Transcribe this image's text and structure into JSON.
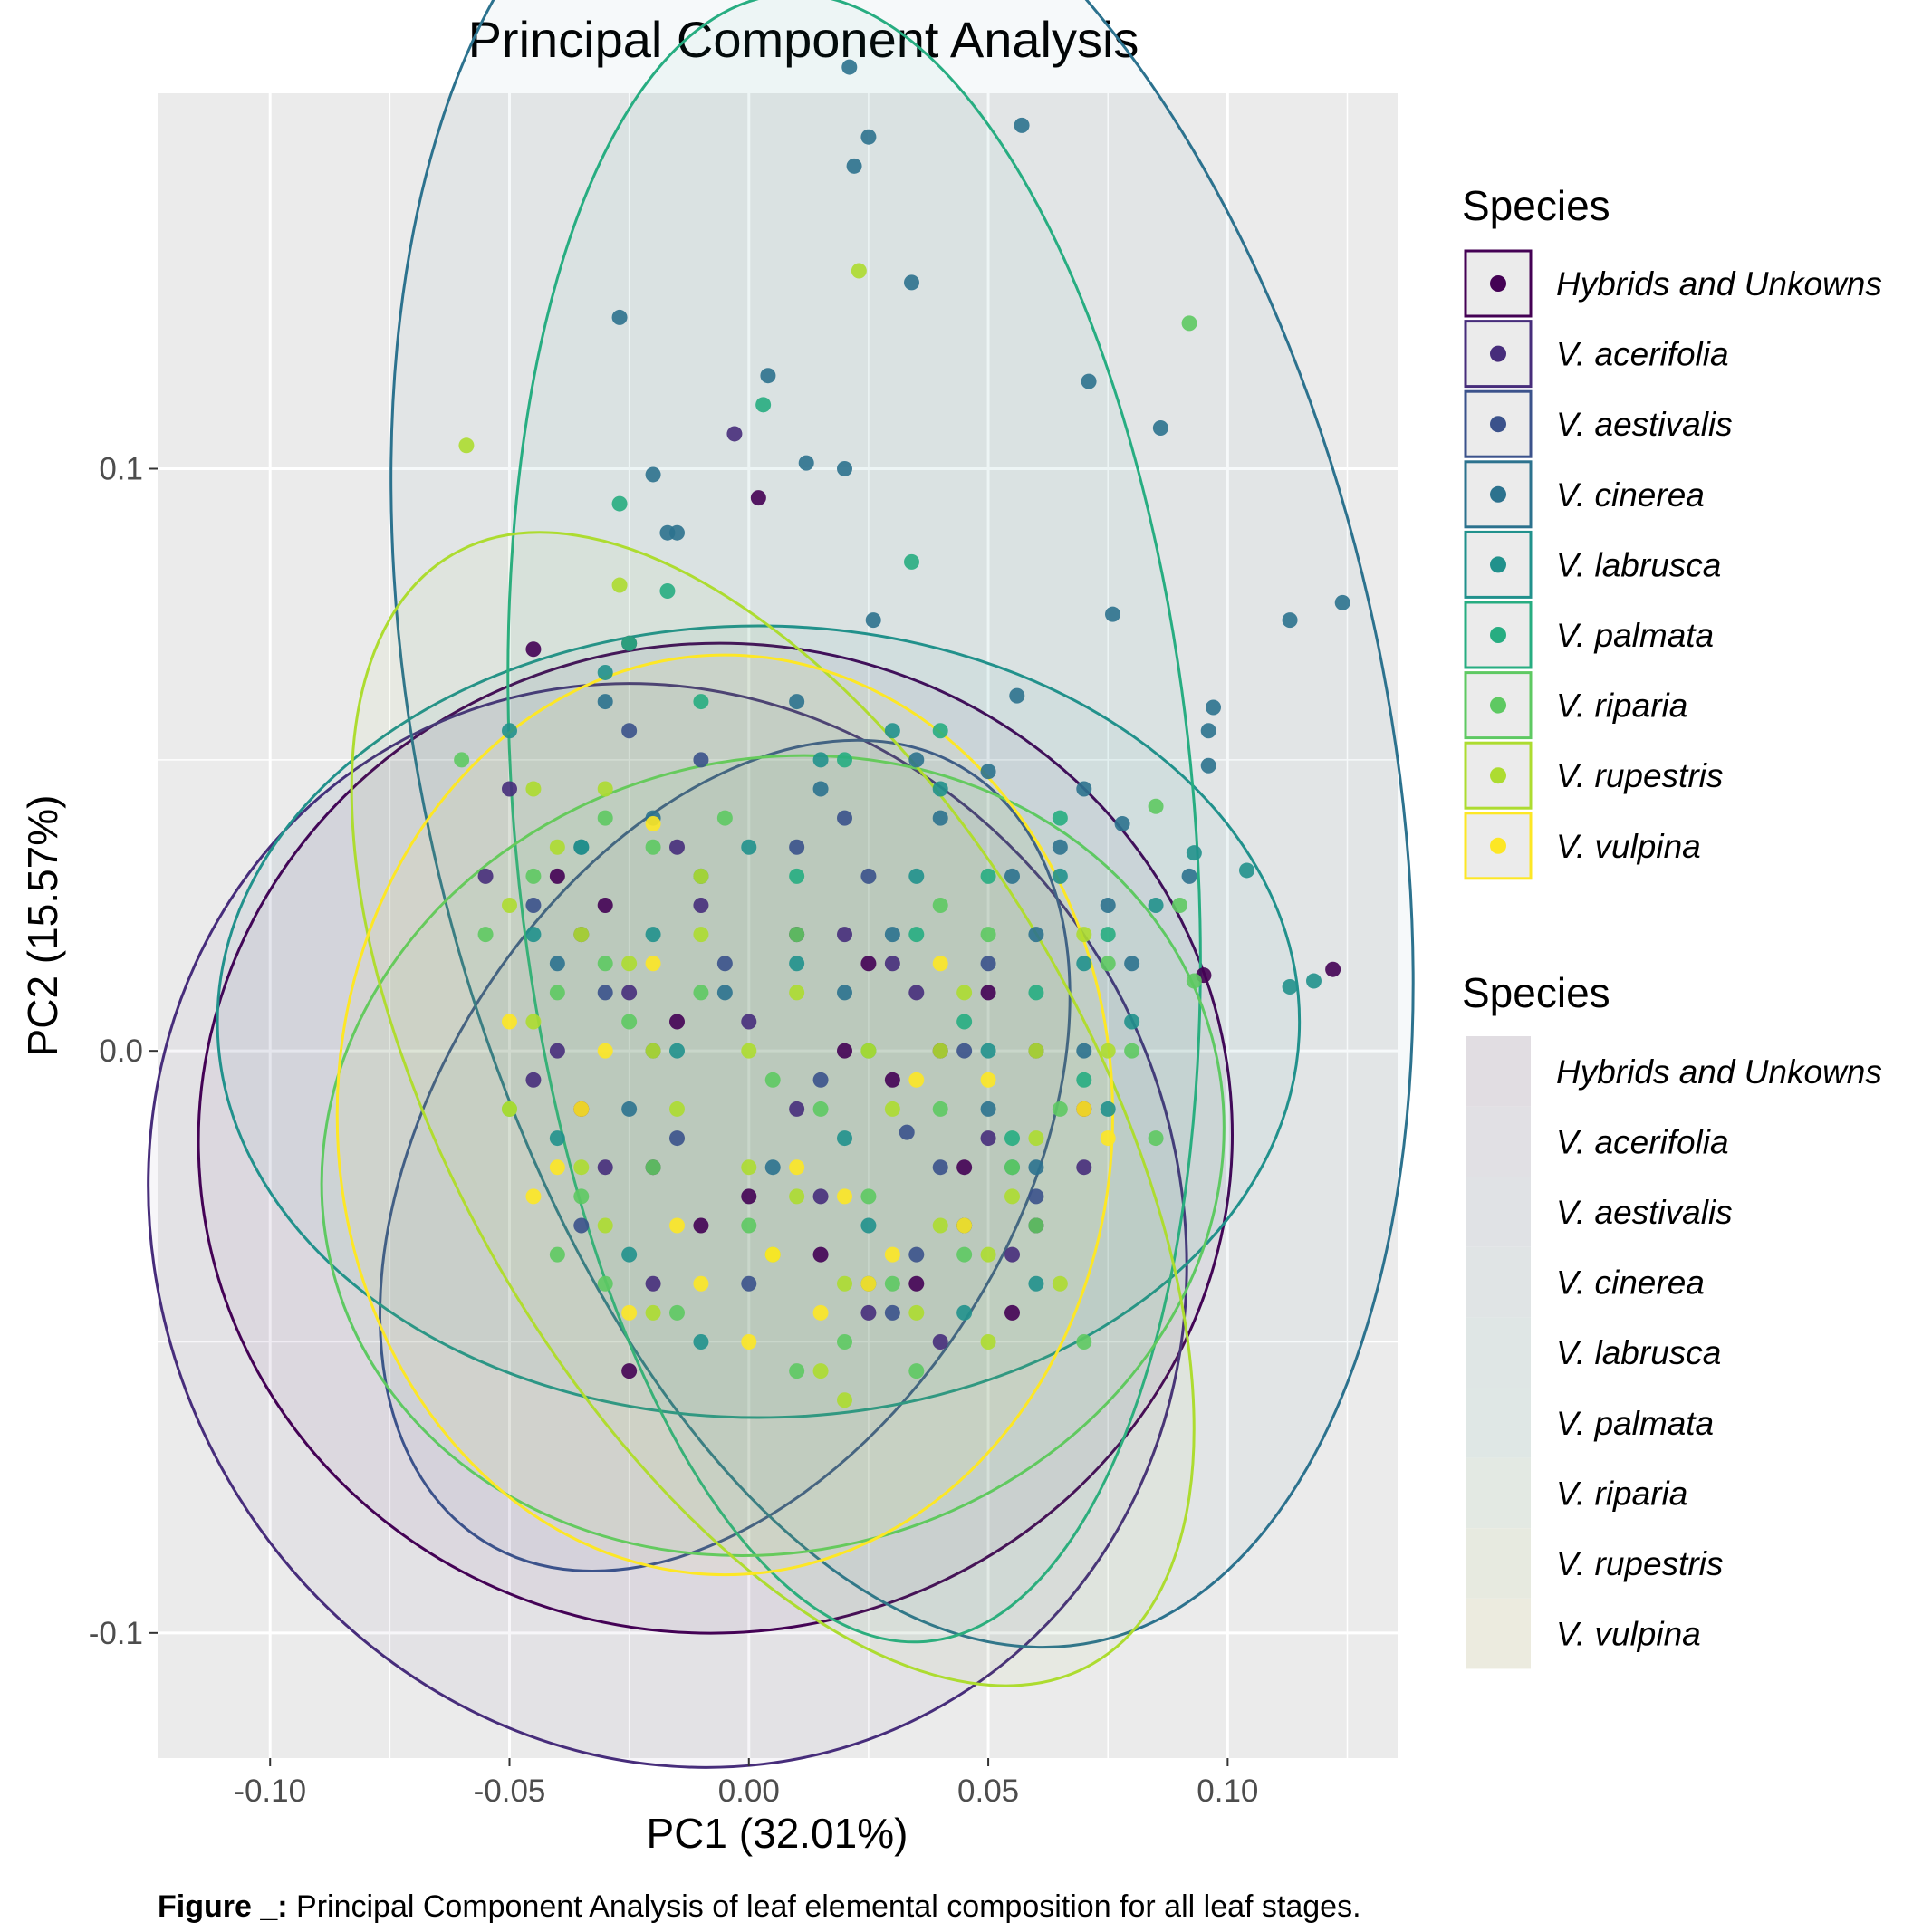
{
  "chart_data": {
    "type": "scatter",
    "title": "Principal Component Analysis",
    "xlabel": "PC1 (32.01%)",
    "ylabel": "PC2 (15.57%)",
    "xlim": [
      -0.1235,
      0.1355
    ],
    "ylim": [
      -0.1215,
      0.1645
    ],
    "x_ticks": [
      -0.1,
      -0.05,
      0.0,
      0.05,
      0.1
    ],
    "x_tick_labels": [
      "-0.10",
      "-0.05",
      "0.00",
      "0.05",
      "0.10"
    ],
    "y_ticks": [
      -0.1,
      0.0,
      0.1
    ],
    "y_tick_labels": [
      "-0.1",
      "0.0",
      "0.1"
    ],
    "grid": true,
    "legend_position": "right",
    "legend_color_title": "Species",
    "legend_fill_title": "Species",
    "series": [
      {
        "name": "Hybrids and Unkowns",
        "color": "#440154",
        "ellipse": {
          "cx": -0.007,
          "cy": -0.015,
          "rx": 0.108,
          "ry": 0.085,
          "rot": -5
        },
        "points": [
          [
            0.002,
            0.095
          ],
          [
            0.095,
            0.013
          ],
          [
            0.122,
            0.014
          ],
          [
            -0.045,
            0.069
          ],
          [
            -0.025,
            0.07
          ],
          [
            0.01,
            0.02
          ],
          [
            -0.01,
            -0.03
          ],
          [
            0.03,
            -0.005
          ],
          [
            -0.02,
            -0.02
          ],
          [
            0.04,
            0.0
          ],
          [
            0.06,
            -0.03
          ],
          [
            -0.03,
            0.025
          ],
          [
            0.015,
            -0.035
          ],
          [
            0.05,
            0.01
          ],
          [
            -0.035,
            -0.01
          ],
          [
            0.025,
            0.015
          ],
          [
            0.07,
            -0.01
          ],
          [
            -0.015,
            0.005
          ],
          [
            0.035,
            -0.04
          ],
          [
            0.045,
            -0.02
          ],
          [
            -0.04,
            0.03
          ],
          [
            0.0,
            -0.025
          ],
          [
            0.055,
            -0.045
          ],
          [
            -0.025,
            -0.055
          ],
          [
            0.02,
            0.0
          ]
        ]
      },
      {
        "name": "V. acerifolia",
        "color": "#472d7b",
        "ellipse": {
          "cx": -0.017,
          "cy": -0.03,
          "rx": 0.106,
          "ry": 0.095,
          "rot": -30
        },
        "points": [
          [
            -0.003,
            0.106
          ],
          [
            -0.055,
            0.03
          ],
          [
            -0.035,
            0.02
          ],
          [
            0.03,
            0.015
          ],
          [
            -0.02,
            -0.04
          ],
          [
            0.01,
            -0.01
          ],
          [
            0.045,
            -0.03
          ],
          [
            -0.01,
            0.025
          ],
          [
            0.06,
            0.0
          ],
          [
            -0.045,
            -0.005
          ],
          [
            0.025,
            -0.045
          ],
          [
            0.0,
            0.005
          ],
          [
            0.05,
            -0.015
          ],
          [
            -0.03,
            -0.02
          ],
          [
            0.035,
            0.01
          ],
          [
            0.015,
            -0.025
          ],
          [
            -0.05,
            0.045
          ],
          [
            0.07,
            -0.02
          ],
          [
            -0.015,
            0.035
          ],
          [
            0.04,
            -0.05
          ],
          [
            -0.04,
            0.0
          ],
          [
            0.02,
            0.02
          ],
          [
            0.055,
            -0.035
          ],
          [
            -0.025,
            0.01
          ]
        ]
      },
      {
        "name": "V. aestivalis",
        "color": "#3b528b",
        "ellipse": {
          "cx": -0.005,
          "cy": -0.018,
          "rx": 0.095,
          "ry": 0.05,
          "rot": -58
        },
        "points": [
          [
            0.033,
            -0.014
          ],
          [
            0.025,
            0.03
          ],
          [
            -0.02,
            0.0
          ],
          [
            0.01,
            0.035
          ],
          [
            -0.035,
            -0.03
          ],
          [
            0.04,
            -0.02
          ],
          [
            0.0,
            -0.04
          ],
          [
            -0.01,
            0.05
          ],
          [
            0.05,
            0.015
          ],
          [
            -0.03,
            0.01
          ],
          [
            0.015,
            -0.005
          ],
          [
            -0.045,
            0.025
          ],
          [
            0.03,
            -0.045
          ],
          [
            0.06,
            -0.025
          ],
          [
            -0.015,
            -0.015
          ],
          [
            0.02,
            0.04
          ],
          [
            -0.025,
            0.055
          ],
          [
            0.045,
            0.0
          ],
          [
            -0.005,
            0.015
          ],
          [
            0.035,
            -0.035
          ]
        ]
      },
      {
        "name": "V. cinerea",
        "color": "#2c728e",
        "ellipse": {
          "cx": 0.032,
          "cy": 0.055,
          "rx": 0.101,
          "ry": 0.16,
          "rot": -12
        },
        "points": [
          [
            0.021,
            0.169
          ],
          [
            0.025,
            0.157
          ],
          [
            0.022,
            0.152
          ],
          [
            0.057,
            0.159
          ],
          [
            -0.027,
            0.126
          ],
          [
            0.034,
            0.132
          ],
          [
            0.004,
            0.116
          ],
          [
            0.071,
            0.115
          ],
          [
            0.086,
            0.107
          ],
          [
            0.012,
            0.101
          ],
          [
            0.02,
            0.1
          ],
          [
            -0.02,
            0.099
          ],
          [
            -0.017,
            0.089
          ],
          [
            -0.015,
            0.089
          ],
          [
            0.076,
            0.075
          ],
          [
            0.026,
            0.074
          ],
          [
            0.113,
            0.074
          ],
          [
            0.124,
            0.077
          ],
          [
            0.056,
            0.061
          ],
          [
            0.097,
            0.059
          ],
          [
            0.096,
            0.055
          ],
          [
            0.096,
            0.049
          ],
          [
            0.05,
            0.048
          ],
          [
            0.07,
            0.045
          ],
          [
            0.078,
            0.039
          ],
          [
            0.092,
            0.03
          ],
          [
            0.03,
            0.02
          ],
          [
            0.01,
            0.06
          ],
          [
            -0.03,
            0.06
          ],
          [
            0.04,
            0.04
          ],
          [
            0.06,
            0.02
          ],
          [
            -0.01,
            0.03
          ],
          [
            0.02,
            0.01
          ],
          [
            0.05,
            -0.01
          ],
          [
            -0.02,
            0.04
          ],
          [
            0.065,
            0.035
          ],
          [
            0.08,
            0.015
          ],
          [
            0.005,
            -0.02
          ],
          [
            0.035,
            0.05
          ],
          [
            -0.04,
            0.015
          ],
          [
            0.045,
            -0.03
          ],
          [
            0.015,
            0.045
          ],
          [
            0.07,
            0.0
          ],
          [
            -0.025,
            -0.01
          ],
          [
            0.055,
            0.03
          ],
          [
            0.025,
            -0.04
          ],
          [
            -0.005,
            0.01
          ],
          [
            0.06,
            -0.02
          ],
          [
            0.075,
            0.025
          ],
          [
            -0.035,
            0.035
          ]
        ]
      },
      {
        "name": "V. labrusca",
        "color": "#21918c",
        "ellipse": {
          "cx": 0.002,
          "cy": 0.005,
          "rx": 0.113,
          "ry": 0.068,
          "rot": 0
        },
        "points": [
          [
            0.093,
            0.034
          ],
          [
            0.104,
            0.031
          ],
          [
            0.118,
            0.012
          ],
          [
            0.113,
            0.011
          ],
          [
            -0.05,
            0.055
          ],
          [
            -0.03,
            0.065
          ],
          [
            0.015,
            0.05
          ],
          [
            0.035,
            0.03
          ],
          [
            -0.02,
            0.02
          ],
          [
            0.05,
            0.0
          ],
          [
            0.07,
            0.015
          ],
          [
            -0.04,
            -0.015
          ],
          [
            0.025,
            -0.03
          ],
          [
            0.06,
            -0.04
          ],
          [
            -0.01,
            -0.05
          ],
          [
            0.04,
            0.045
          ],
          [
            -0.035,
            0.035
          ],
          [
            0.08,
            0.005
          ],
          [
            0.01,
            0.015
          ],
          [
            0.055,
            -0.02
          ],
          [
            -0.025,
            -0.035
          ],
          [
            0.03,
            0.055
          ],
          [
            0.065,
            0.03
          ],
          [
            -0.015,
            0.0
          ],
          [
            0.045,
            -0.045
          ],
          [
            0.075,
            -0.01
          ],
          [
            0.0,
            0.035
          ],
          [
            -0.045,
            0.02
          ],
          [
            0.02,
            -0.015
          ],
          [
            0.085,
            0.025
          ]
        ]
      },
      {
        "name": "V. palmata",
        "color": "#27ad81",
        "ellipse": {
          "cx": 0.022,
          "cy": 0.04,
          "rx": 0.071,
          "ry": 0.142,
          "rot": -5
        },
        "points": [
          [
            -0.027,
            0.094
          ],
          [
            0.003,
            0.111
          ],
          [
            0.034,
            0.084
          ],
          [
            -0.017,
            0.079
          ],
          [
            -0.025,
            0.07
          ],
          [
            0.05,
            0.03
          ],
          [
            0.06,
            0.01
          ],
          [
            0.02,
            0.05
          ],
          [
            0.07,
            -0.005
          ],
          [
            0.035,
            0.02
          ],
          [
            -0.01,
            0.06
          ],
          [
            0.065,
            0.04
          ],
          [
            0.045,
            0.005
          ],
          [
            0.01,
            0.03
          ],
          [
            0.055,
            -0.015
          ],
          [
            0.075,
            0.02
          ],
          [
            0.025,
            0.0
          ],
          [
            0.04,
            0.055
          ]
        ]
      },
      {
        "name": "V. riparia",
        "color": "#5ec962",
        "ellipse": {
          "cx": 0.005,
          "cy": -0.018,
          "rx": 0.095,
          "ry": 0.068,
          "rot": -15
        },
        "points": [
          [
            0.092,
            0.125
          ],
          [
            0.085,
            0.042
          ],
          [
            0.09,
            0.025
          ],
          [
            0.093,
            0.012
          ],
          [
            -0.06,
            0.05
          ],
          [
            -0.03,
            0.04
          ],
          [
            -0.04,
            0.01
          ],
          [
            -0.02,
            -0.02
          ],
          [
            0.0,
            -0.03
          ],
          [
            0.02,
            -0.05
          ],
          [
            0.04,
            -0.01
          ],
          [
            0.06,
            -0.03
          ],
          [
            0.08,
            0.0
          ],
          [
            -0.05,
            -0.01
          ],
          [
            -0.03,
            -0.04
          ],
          [
            0.01,
            0.02
          ],
          [
            0.03,
            -0.04
          ],
          [
            0.05,
            0.02
          ],
          [
            -0.01,
            0.01
          ],
          [
            0.07,
            -0.05
          ],
          [
            -0.045,
            0.03
          ],
          [
            -0.025,
            0.005
          ],
          [
            -0.035,
            -0.025
          ],
          [
            0.015,
            -0.01
          ],
          [
            0.035,
            -0.055
          ],
          [
            0.055,
            -0.02
          ],
          [
            0.075,
            0.015
          ],
          [
            -0.015,
            -0.045
          ],
          [
            0.005,
            -0.005
          ],
          [
            0.045,
            -0.035
          ],
          [
            -0.055,
            0.02
          ],
          [
            -0.02,
            0.035
          ],
          [
            0.025,
            -0.025
          ],
          [
            0.065,
            -0.01
          ],
          [
            -0.04,
            -0.035
          ],
          [
            0.085,
            -0.015
          ],
          [
            -0.005,
            0.04
          ],
          [
            -0.03,
            0.015
          ],
          [
            0.01,
            -0.055
          ],
          [
            0.04,
            0.025
          ]
        ]
      },
      {
        "name": "V. rupestris",
        "color": "#addc30",
        "ellipse": {
          "cx": 0.005,
          "cy": -0.01,
          "rx": 0.066,
          "ry": 0.11,
          "rot": -30
        },
        "points": [
          [
            0.023,
            0.134
          ],
          [
            -0.059,
            0.104
          ],
          [
            -0.027,
            0.08
          ],
          [
            -0.045,
            0.045
          ],
          [
            -0.035,
            0.02
          ],
          [
            -0.02,
            0.0
          ],
          [
            0.0,
            -0.02
          ],
          [
            0.02,
            -0.04
          ],
          [
            0.04,
            -0.03
          ],
          [
            0.06,
            0.0
          ],
          [
            -0.05,
            -0.01
          ],
          [
            -0.03,
            -0.03
          ],
          [
            0.01,
            0.01
          ],
          [
            0.03,
            -0.01
          ],
          [
            0.05,
            -0.05
          ],
          [
            -0.01,
            0.03
          ],
          [
            0.07,
            0.02
          ],
          [
            -0.04,
            0.035
          ],
          [
            0.015,
            -0.055
          ],
          [
            0.045,
            0.01
          ],
          [
            -0.025,
            0.015
          ],
          [
            0.005,
            -0.035
          ],
          [
            -0.015,
            -0.01
          ],
          [
            0.035,
            -0.045
          ],
          [
            0.055,
            -0.025
          ],
          [
            -0.045,
            0.005
          ],
          [
            0.025,
            0.0
          ],
          [
            0.065,
            -0.04
          ],
          [
            -0.035,
            -0.02
          ],
          [
            0.075,
            0.0
          ],
          [
            -0.05,
            0.025
          ],
          [
            0.0,
            0.0
          ],
          [
            0.02,
            -0.06
          ],
          [
            0.04,
            0.0
          ],
          [
            -0.02,
            -0.045
          ],
          [
            0.06,
            -0.015
          ],
          [
            -0.03,
            0.045
          ],
          [
            0.01,
            -0.025
          ],
          [
            0.05,
            -0.035
          ],
          [
            -0.01,
            0.02
          ]
        ]
      },
      {
        "name": "V. vulpina",
        "color": "#fde725",
        "ellipse": {
          "cx": -0.005,
          "cy": -0.011,
          "rx": 0.081,
          "ry": 0.079,
          "rot": 0
        },
        "points": [
          [
            -0.02,
            0.039
          ],
          [
            -0.04,
            -0.02
          ],
          [
            -0.03,
            0.0
          ],
          [
            -0.01,
            -0.04
          ],
          [
            0.01,
            -0.02
          ],
          [
            0.03,
            -0.035
          ],
          [
            0.05,
            -0.005
          ],
          [
            0.07,
            -0.01
          ],
          [
            -0.045,
            -0.025
          ],
          [
            -0.02,
            0.015
          ],
          [
            0.0,
            -0.05
          ],
          [
            0.02,
            -0.025
          ],
          [
            0.04,
            0.015
          ],
          [
            0.075,
            -0.015
          ],
          [
            -0.035,
            -0.01
          ],
          [
            -0.015,
            -0.03
          ],
          [
            0.015,
            -0.045
          ],
          [
            0.035,
            -0.005
          ],
          [
            -0.025,
            -0.045
          ],
          [
            0.005,
            -0.035
          ],
          [
            0.025,
            -0.04
          ],
          [
            0.045,
            -0.03
          ],
          [
            -0.05,
            0.005
          ]
        ]
      }
    ]
  },
  "caption": {
    "label": "Figure _:",
    "text": " Principal Component Analysis of leaf elemental composition for all leaf stages."
  }
}
